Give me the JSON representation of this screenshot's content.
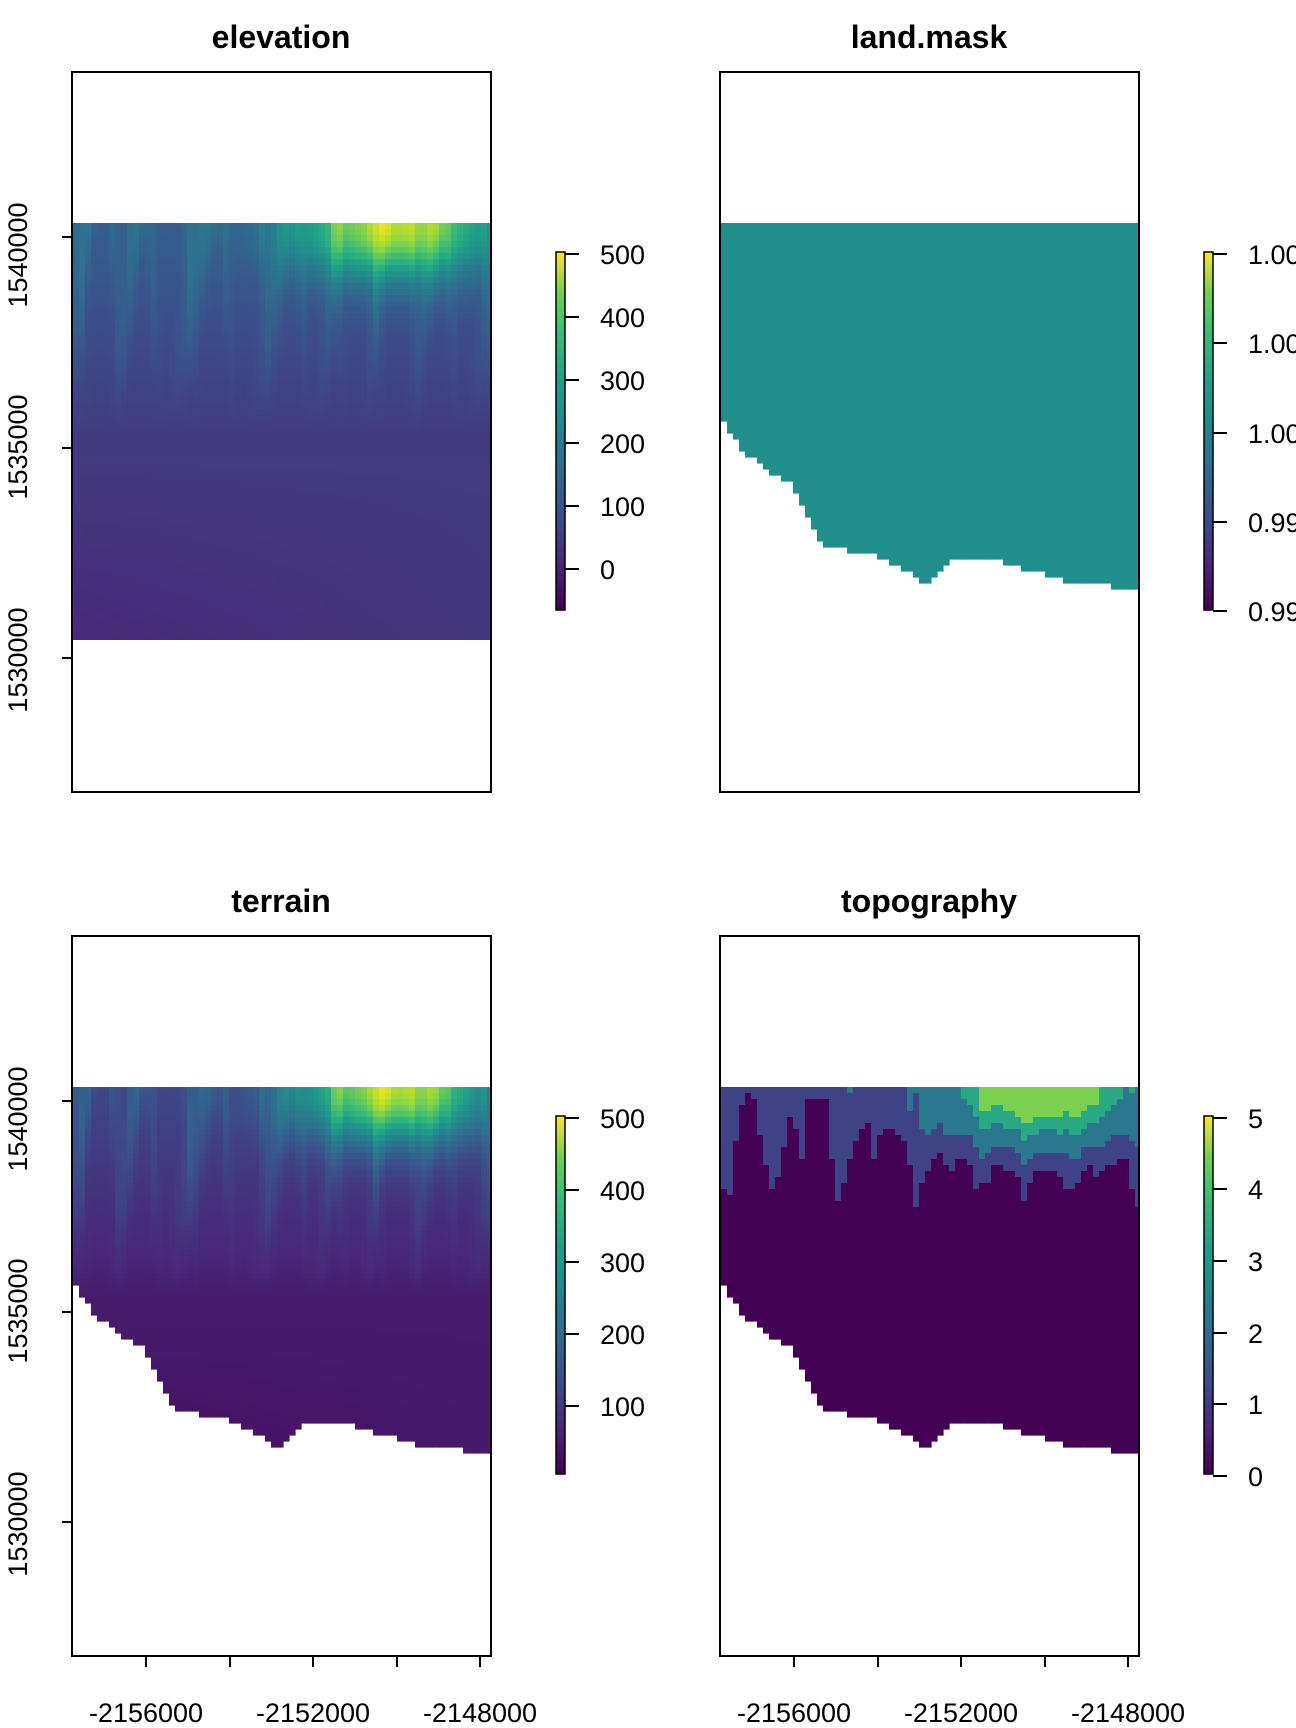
{
  "chart_data": [
    {
      "type": "heatmap",
      "title": "elevation",
      "fill": "full",
      "colormap": "viridis",
      "legend": {
        "min": -60,
        "max": 520,
        "ticks": [
          500,
          400,
          300,
          200,
          100,
          0
        ]
      },
      "x_ticks": [
        "-2156000",
        "-2152000",
        "-2148000"
      ],
      "y_ticks": [
        "1540000",
        "1535000",
        "1530000"
      ],
      "show_x_axis": false,
      "show_y_axis": true,
      "data_extent": {
        "x": [
          -2157700,
          -2147700
        ],
        "y": [
          1530400,
          1540400
        ]
      }
    },
    {
      "type": "heatmap",
      "title": "land.mask",
      "fill": "land",
      "colormap": "viridis",
      "uniform_color": "#21908C",
      "legend": {
        "min": 0.9975,
        "max": 1.0025,
        "ticks": [
          "1.00",
          "1.00",
          "1.00",
          "0.99",
          "0.99"
        ]
      },
      "x_ticks": [
        "-2156000",
        "-2152000",
        "-2148000"
      ],
      "y_ticks": [
        "1540000",
        "1535000",
        "1530000"
      ],
      "show_x_axis": false,
      "show_y_axis": false
    },
    {
      "type": "heatmap",
      "title": "terrain",
      "fill": "land",
      "colormap": "viridis",
      "legend": {
        "min": 0,
        "max": 500,
        "ticks": [
          500,
          400,
          300,
          200,
          100
        ]
      },
      "x_ticks": [
        "-2156000",
        "-2152000",
        "-2148000"
      ],
      "y_ticks": [
        "1540000",
        "1535000",
        "1530000"
      ],
      "show_x_axis": true,
      "show_y_axis": true
    },
    {
      "type": "heatmap",
      "title": "topography",
      "fill": "land",
      "colormap": "viridis",
      "classes": 6,
      "legend": {
        "min": 0,
        "max": 5,
        "ticks": [
          5,
          4,
          3,
          2,
          1,
          0
        ]
      },
      "x_ticks": [
        "-2156000",
        "-2152000",
        "-2148000"
      ],
      "y_ticks": [
        "1540000",
        "1535000",
        "1530000"
      ],
      "show_x_axis": true,
      "show_y_axis": false
    }
  ]
}
